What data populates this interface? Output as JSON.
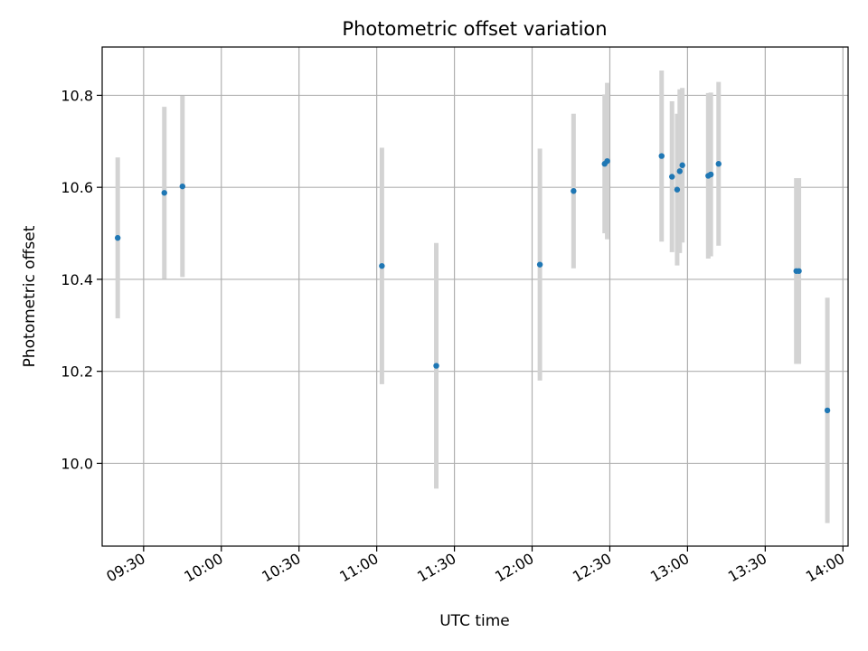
{
  "chart_data": {
    "type": "scatter",
    "title": "Photometric offset variation",
    "xlabel": "UTC time",
    "ylabel": "Photometric offset",
    "grid": true,
    "xlim": [
      "09:14",
      "14:02"
    ],
    "ylim": [
      9.82,
      10.905
    ],
    "x_ticks": [
      "09:30",
      "10:00",
      "10:30",
      "11:00",
      "11:30",
      "12:00",
      "12:30",
      "13:00",
      "13:30",
      "14:00"
    ],
    "y_ticks": [
      "10.0",
      "10.2",
      "10.4",
      "10.6",
      "10.8"
    ],
    "marker_color": "#1f77b4",
    "errorbar_color": "#d3d3d3",
    "series": [
      {
        "points": [
          {
            "x": "09:20",
            "y": 10.49,
            "yerr": 0.175
          },
          {
            "x": "09:38",
            "y": 10.588,
            "yerr": 0.187
          },
          {
            "x": "09:45",
            "y": 10.602,
            "yerr": 0.197
          },
          {
            "x": "11:02",
            "y": 10.429,
            "yerr": 0.257
          },
          {
            "x": "11:23",
            "y": 10.212,
            "yerr": 0.267
          },
          {
            "x": "12:03",
            "y": 10.432,
            "yerr": 0.252
          },
          {
            "x": "12:16",
            "y": 10.592,
            "yerr": 0.168
          },
          {
            "x": "12:28",
            "y": 10.651,
            "yerr": 0.151
          },
          {
            "x": "12:29",
            "y": 10.657,
            "yerr": 0.17
          },
          {
            "x": "12:50",
            "y": 10.668,
            "yerr": 0.186
          },
          {
            "x": "12:54",
            "y": 10.623,
            "yerr": 0.164
          },
          {
            "x": "12:56",
            "y": 10.595,
            "yerr": 0.165
          },
          {
            "x": "12:57",
            "y": 10.635,
            "yerr": 0.178
          },
          {
            "x": "12:58",
            "y": 10.648,
            "yerr": 0.168
          },
          {
            "x": "13:08",
            "y": 10.625,
            "yerr": 0.18
          },
          {
            "x": "13:09",
            "y": 10.628,
            "yerr": 0.178
          },
          {
            "x": "13:12",
            "y": 10.651,
            "yerr": 0.178
          },
          {
            "x": "13:42",
            "y": 10.418,
            "yerr": 0.202
          },
          {
            "x": "13:43",
            "y": 10.418,
            "yerr": 0.202
          },
          {
            "x": "13:54",
            "y": 10.115,
            "yerr": 0.245
          }
        ]
      }
    ]
  }
}
